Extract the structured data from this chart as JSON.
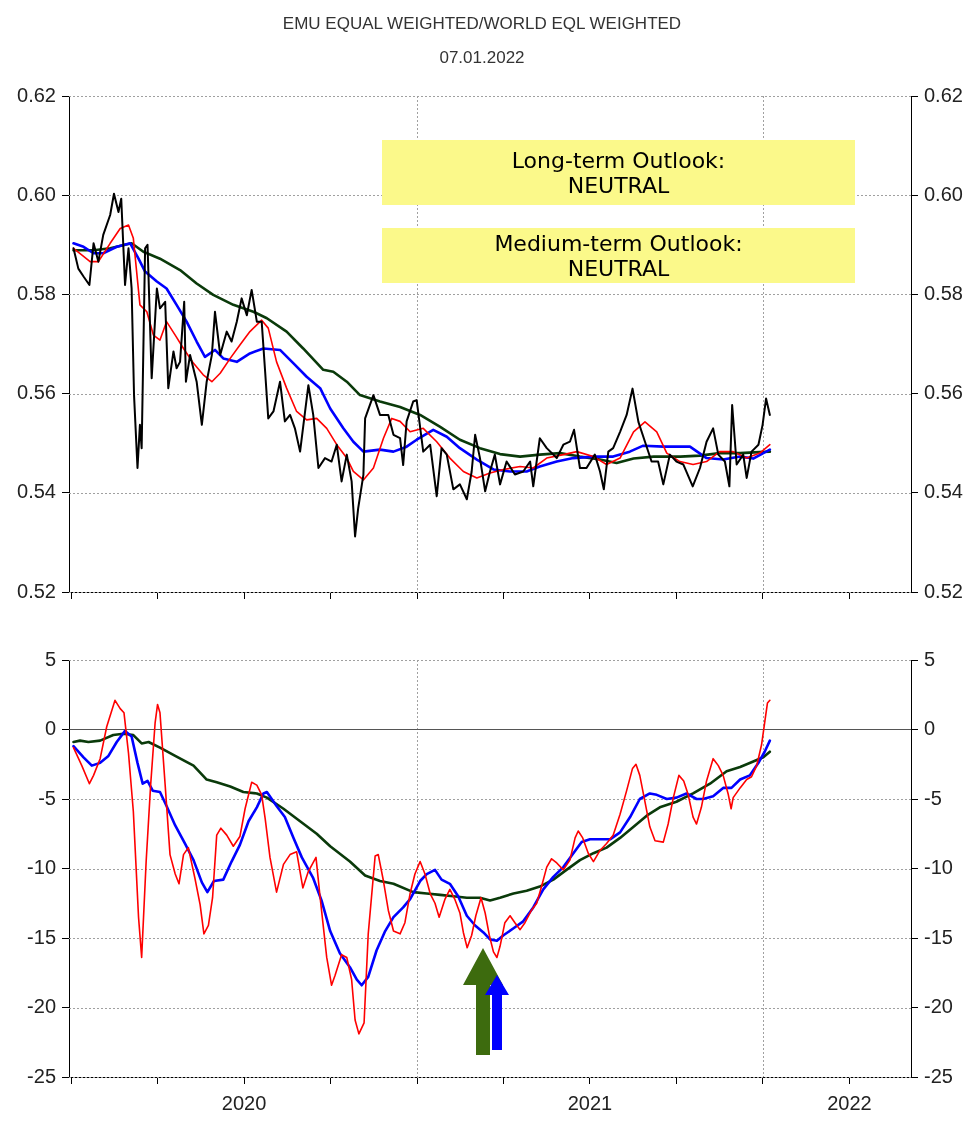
{
  "chart_data": [
    {
      "type": "line",
      "title": "EMU EQUAL WEIGHTED/WORLD EQL WEIGHTED",
      "subtitle": "07.01.2022",
      "annotations": [
        "Long-term Outlook:\nNEUTRAL",
        "Medium-term Outlook:\nNEUTRAL"
      ],
      "xlim": [
        2019.994,
        2022.428
      ],
      "xticks": [
        {
          "value": 2020,
          "label": null
        },
        {
          "value": 2020.25,
          "label": null
        },
        {
          "value": 2020.5,
          "label": null
        },
        {
          "value": 2020.75,
          "label": null
        },
        {
          "value": 2021,
          "label": null
        },
        {
          "value": 2021.25,
          "label": null
        },
        {
          "value": 2021.5,
          "label": null
        },
        {
          "value": 2021.75,
          "label": null
        },
        {
          "value": 2022,
          "label": null
        },
        {
          "value": 2022.25,
          "label": null
        }
      ],
      "ylim": [
        0.52,
        0.62
      ],
      "yticks": [
        0.52,
        0.54,
        0.56,
        0.58,
        {
          "value": 0.6,
          "label": "0.60"
        },
        0.62
      ],
      "y2lim": [
        0.52,
        0.62
      ],
      "y2ticks": [
        0.52,
        0.54,
        0.56,
        0.58,
        {
          "value": 0.6,
          "label": "0.60"
        },
        0.62
      ],
      "tick_labels": "y",
      "grid": "y",
      "ref_lines": [
        {
          "axis": "x",
          "value": 2021,
          "color": "#a0a0a0",
          "line_style": "dotted"
        },
        {
          "axis": "x",
          "value": 2022,
          "color": "#a0a0a0",
          "line_style": "dotted"
        }
      ],
      "series": [
        {
          "color": "#000000",
          "x": [
            2020.007,
            2020.021,
            2020.036,
            2020.053,
            2020.065,
            2020.079,
            2020.093,
            2020.113,
            2020.124,
            2020.137,
            2020.145,
            2020.156,
            2020.166,
            2020.175,
            2020.182,
            2020.192,
            2020.199,
            2020.204,
            2020.214,
            2020.221,
            2020.233,
            2020.248,
            2020.257,
            2020.272,
            2020.281,
            2020.296,
            2020.305,
            2020.315,
            2020.327,
            2020.332,
            2020.344,
            2020.363,
            2020.378,
            2020.392,
            2020.407,
            2020.416,
            2020.431,
            2020.45,
            2020.464,
            2020.479,
            2020.493,
            2020.508,
            2020.522,
            2020.537,
            2020.551,
            2020.561,
            2020.57,
            2020.585,
            2020.604,
            2020.618,
            2020.633,
            2020.647,
            2020.662,
            2020.686,
            2020.7,
            2020.715,
            2020.734,
            2020.753,
            2020.768,
            2020.782,
            2020.797,
            2020.811,
            2020.821,
            2020.83,
            2020.845,
            2020.85,
            2020.874,
            2020.893,
            2020.917,
            2020.932,
            2020.951,
            2020.96,
            2020.97,
            2020.989,
            2020.999,
            2021.018,
            2021.038,
            2021.057,
            2021.071,
            2021.086,
            2021.105,
            2021.124,
            2021.144,
            2021.158,
            2021.168,
            2021.182,
            2021.197,
            2021.211,
            2021.225,
            2021.24,
            2021.259,
            2021.283,
            2021.307,
            2021.327,
            2021.336,
            2021.355,
            2021.375,
            2021.404,
            2021.423,
            2021.442,
            2021.454,
            2021.471,
            2021.49,
            2021.514,
            2021.529,
            2021.54,
            2021.553,
            2021.567,
            2021.587,
            2021.606,
            2021.623,
            2021.64,
            2021.659,
            2021.678,
            2021.697,
            2021.712,
            2021.731,
            2021.75,
            2021.77,
            2021.797,
            2021.818,
            2021.837,
            2021.856,
            2021.871,
            2021.89,
            2021.903,
            2021.911,
            2021.924,
            2021.943,
            2021.953,
            2021.967,
            2021.987,
            2021.999,
            2022.009,
            2022.02
          ],
          "values": [
            0.5893,
            0.5852,
            0.5836,
            0.5819,
            0.5903,
            0.5866,
            0.592,
            0.596,
            0.6003,
            0.5966,
            0.5993,
            0.5819,
            0.5893,
            0.5812,
            0.5597,
            0.545,
            0.5537,
            0.549,
            0.5893,
            0.59,
            0.5631,
            0.5812,
            0.5772,
            0.5785,
            0.5611,
            0.5685,
            0.5651,
            0.5664,
            0.5785,
            0.5624,
            0.5678,
            0.5624,
            0.5537,
            0.5624,
            0.5678,
            0.5765,
            0.5678,
            0.5725,
            0.5705,
            0.5745,
            0.5792,
            0.5758,
            0.5809,
            0.5745,
            0.5745,
            0.5644,
            0.555,
            0.5564,
            0.5624,
            0.5544,
            0.5557,
            0.553,
            0.5483,
            0.5617,
            0.5557,
            0.545,
            0.547,
            0.5463,
            0.5497,
            0.5423,
            0.5477,
            0.5423,
            0.5312,
            0.5369,
            0.5436,
            0.555,
            0.5597,
            0.5557,
            0.5557,
            0.5517,
            0.551,
            0.5456,
            0.5544,
            0.5584,
            0.5587,
            0.5483,
            0.5497,
            0.5393,
            0.549,
            0.5477,
            0.5407,
            0.5417,
            0.5387,
            0.5443,
            0.5517,
            0.547,
            0.5403,
            0.5443,
            0.5477,
            0.5417,
            0.5463,
            0.5437,
            0.5443,
            0.5463,
            0.5413,
            0.551,
            0.549,
            0.547,
            0.5497,
            0.5503,
            0.5527,
            0.545,
            0.545,
            0.5477,
            0.5443,
            0.5407,
            0.5483,
            0.549,
            0.5523,
            0.5557,
            0.561,
            0.5543,
            0.5503,
            0.5463,
            0.5463,
            0.5417,
            0.5477,
            0.5463,
            0.5457,
            0.5413,
            0.545,
            0.5503,
            0.553,
            0.5477,
            0.5463,
            0.5413,
            0.5577,
            0.5457,
            0.5477,
            0.543,
            0.5483,
            0.5497,
            0.5537,
            0.559,
            0.5557
          ]
        },
        {
          "color": "#ff0000",
          "x": [
            2020.007,
            2020.055,
            2020.079,
            2020.113,
            2020.142,
            2020.166,
            2020.18,
            2020.199,
            2020.219,
            2020.238,
            2020.257,
            2020.276,
            2020.301,
            2020.325,
            2020.354,
            2020.382,
            2020.407,
            2020.431,
            2020.46,
            2020.488,
            2020.517,
            2020.551,
            2020.57,
            2020.594,
            2020.623,
            2020.652,
            2020.681,
            2020.71,
            2020.739,
            2020.768,
            2020.797,
            2020.816,
            2020.845,
            2020.874,
            2020.903,
            2020.927,
            2020.951,
            2020.98,
            2021.018,
            2021.057,
            2021.095,
            2021.134,
            2021.173,
            2021.211,
            2021.25,
            2021.298,
            2021.336,
            2021.375,
            2021.423,
            2021.462,
            2021.51,
            2021.548,
            2021.587,
            2021.626,
            2021.659,
            2021.693,
            2021.722,
            2021.76,
            2021.798,
            2021.837,
            2021.875,
            2021.914,
            2021.953,
            2021.991,
            2022.02
          ],
          "values": [
            0.5893,
            0.5866,
            0.5866,
            0.5903,
            0.5933,
            0.594,
            0.5913,
            0.5779,
            0.5765,
            0.5718,
            0.5708,
            0.5745,
            0.5718,
            0.5691,
            0.5661,
            0.5638,
            0.5624,
            0.5641,
            0.5671,
            0.5698,
            0.5725,
            0.5748,
            0.5732,
            0.5664,
            0.5611,
            0.5564,
            0.5547,
            0.555,
            0.553,
            0.5497,
            0.547,
            0.5443,
            0.5426,
            0.545,
            0.551,
            0.555,
            0.5544,
            0.5523,
            0.553,
            0.5503,
            0.547,
            0.5443,
            0.543,
            0.544,
            0.5447,
            0.5453,
            0.545,
            0.547,
            0.5477,
            0.5483,
            0.5473,
            0.5457,
            0.547,
            0.5523,
            0.5543,
            0.5523,
            0.548,
            0.5463,
            0.5457,
            0.5463,
            0.5483,
            0.5483,
            0.547,
            0.548,
            0.5497
          ]
        },
        {
          "color": "#0000ff",
          "x": [
            2020.007,
            2020.036,
            2020.065,
            2020.093,
            2020.132,
            2020.171,
            2020.195,
            2020.214,
            2020.248,
            2020.276,
            2020.305,
            2020.334,
            2020.363,
            2020.387,
            2020.416,
            2020.44,
            2020.479,
            2020.517,
            2020.556,
            2020.604,
            2020.643,
            2020.681,
            2020.72,
            2020.749,
            2020.787,
            2020.816,
            2020.845,
            2020.893,
            2020.932,
            2020.97,
            2020.999,
            2021.047,
            2021.086,
            2021.124,
            2021.173,
            2021.221,
            2021.269,
            2021.317,
            2021.355,
            2021.404,
            2021.452,
            2021.51,
            2021.567,
            2021.615,
            2021.654,
            2021.712,
            2021.789,
            2021.837,
            2021.885,
            2021.934,
            2021.972,
            2022.02
          ],
          "values": [
            0.5903,
            0.5896,
            0.5883,
            0.5883,
            0.5896,
            0.5903,
            0.5872,
            0.5846,
            0.5826,
            0.5812,
            0.5779,
            0.5745,
            0.5705,
            0.5674,
            0.5688,
            0.5671,
            0.5664,
            0.5681,
            0.5691,
            0.5688,
            0.5661,
            0.5634,
            0.5611,
            0.557,
            0.553,
            0.5503,
            0.5483,
            0.5487,
            0.5483,
            0.5493,
            0.5507,
            0.5527,
            0.5513,
            0.549,
            0.5467,
            0.5447,
            0.5443,
            0.5443,
            0.5453,
            0.5463,
            0.547,
            0.5473,
            0.5473,
            0.5483,
            0.5495,
            0.5493,
            0.5493,
            0.547,
            0.5467,
            0.5473,
            0.5469,
            0.5487
          ]
        },
        {
          "color": "#0a3a0a",
          "x": [
            2020.007,
            2020.065,
            2020.113,
            2020.175,
            2020.209,
            2020.257,
            2020.315,
            2020.363,
            2020.411,
            2020.469,
            2020.527,
            2020.566,
            2020.623,
            2020.671,
            2020.729,
            2020.758,
            2020.797,
            2020.835,
            2020.893,
            2020.951,
            2021.009,
            2021.067,
            2021.124,
            2021.182,
            2021.24,
            2021.298,
            2021.355,
            2021.413,
            2021.471,
            2021.529,
            2021.577,
            2021.626,
            2021.684,
            2021.761,
            2021.818,
            2021.875,
            2021.934,
            2022.02
          ],
          "values": [
            0.5889,
            0.5889,
            0.5893,
            0.5903,
            0.5886,
            0.5872,
            0.5849,
            0.5822,
            0.5799,
            0.5779,
            0.5765,
            0.5752,
            0.5725,
            0.5691,
            0.5648,
            0.5644,
            0.5624,
            0.5597,
            0.5584,
            0.5573,
            0.5557,
            0.5533,
            0.5507,
            0.549,
            0.5478,
            0.5473,
            0.5477,
            0.548,
            0.5473,
            0.5467,
            0.546,
            0.5469,
            0.5473,
            0.5473,
            0.5475,
            0.548,
            0.548,
            0.5483
          ]
        }
      ]
    },
    {
      "type": "line",
      "xlim": [
        2019.994,
        2022.428
      ],
      "xticks": [
        {
          "value": 2020,
          "label": null
        },
        {
          "value": 2020.25,
          "label": null
        },
        {
          "value": 2020.5,
          "label": "2020"
        },
        {
          "value": 2020.75,
          "label": null
        },
        {
          "value": 2021,
          "label": null
        },
        {
          "value": 2021.25,
          "label": null
        },
        {
          "value": 2021.5,
          "label": "2021"
        },
        {
          "value": 2021.75,
          "label": null
        },
        {
          "value": 2022,
          "label": null
        },
        {
          "value": 2022.25,
          "label": "2022"
        }
      ],
      "ylim": [
        -25,
        5
      ],
      "yticks": [
        -25,
        -20,
        -15,
        -10,
        -5,
        0,
        5
      ],
      "y2lim": [
        -25,
        5
      ],
      "y2ticks": [
        -25,
        -20,
        -15,
        -10,
        -5,
        0,
        5
      ],
      "grid": "y",
      "ref_lines": [
        {
          "axis": "x",
          "value": 2021,
          "color": "#a0a0a0",
          "line_style": "dotted"
        },
        {
          "axis": "x",
          "value": 2022,
          "color": "#a0a0a0",
          "line_style": "dotted"
        },
        {
          "axis": "y",
          "value": 0,
          "color": "#555555"
        }
      ],
      "series": [
        {
          "color": "#ff0000",
          "x": [
            2020.007,
            2020.031,
            2020.053,
            2020.065,
            2020.084,
            2020.103,
            2020.127,
            2020.142,
            2020.153,
            2020.166,
            2020.18,
            2020.195,
            2020.204,
            2020.217,
            2020.23,
            2020.243,
            2020.25,
            2020.257,
            2020.272,
            2020.286,
            2020.301,
            2020.312,
            2020.325,
            2020.339,
            2020.358,
            2020.373,
            2020.384,
            2020.397,
            2020.409,
            2020.421,
            2020.433,
            2020.45,
            2020.469,
            2020.488,
            2020.503,
            2020.522,
            2020.537,
            2020.551,
            2020.561,
            2020.575,
            2020.594,
            2020.614,
            2020.633,
            2020.652,
            2020.67,
            2020.686,
            2020.708,
            2020.72,
            2020.739,
            2020.753,
            2020.763,
            2020.782,
            2020.797,
            2020.811,
            2020.821,
            2020.832,
            2020.847,
            2020.859,
            2020.879,
            2020.888,
            2020.903,
            2020.917,
            2020.932,
            2020.951,
            2020.965,
            2020.98,
            2020.994,
            2021.009,
            2021.023,
            2021.038,
            2021.052,
            2021.064,
            2021.081,
            2021.095,
            2021.109,
            2021.124,
            2021.134,
            2021.145,
            2021.158,
            2021.17,
            2021.185,
            2021.197,
            2021.209,
            2021.221,
            2021.231,
            2021.24,
            2021.254,
            2021.269,
            2021.283,
            2021.298,
            2021.312,
            2021.331,
            2021.346,
            2021.36,
            2021.375,
            2021.389,
            2021.404,
            2021.423,
            2021.442,
            2021.457,
            2021.466,
            2021.479,
            2021.495,
            2021.51,
            2021.529,
            2021.548,
            2021.567,
            2021.587,
            2021.606,
            2021.623,
            2021.633,
            2021.644,
            2021.659,
            2021.673,
            2021.688,
            2021.712,
            2021.726,
            2021.741,
            2021.757,
            2021.771,
            2021.784,
            2021.798,
            2021.808,
            2021.822,
            2021.837,
            2021.856,
            2021.871,
            2021.885,
            2021.9,
            2021.908,
            2021.914,
            2021.934,
            2021.953,
            2021.967,
            2021.982,
            2021.996,
            2022.005,
            2022.013,
            2022.02
          ],
          "values": [
            -1.3,
            -2.6,
            -3.9,
            -3.3,
            -2.1,
            0.2,
            2.1,
            1.5,
            1.2,
            -1.7,
            -5.9,
            -13.5,
            -16.4,
            -9.5,
            -4.0,
            0.5,
            1.8,
            1.2,
            -4.0,
            -9.0,
            -10.4,
            -11.1,
            -9.0,
            -8.5,
            -10.7,
            -12.6,
            -14.7,
            -14.1,
            -12.1,
            -7.6,
            -7.1,
            -7.6,
            -8.4,
            -7.7,
            -5.7,
            -3.8,
            -4.0,
            -4.7,
            -6.4,
            -9.2,
            -11.7,
            -9.7,
            -9.0,
            -8.8,
            -11.4,
            -10.2,
            -9.2,
            -12.1,
            -16.4,
            -18.4,
            -17.7,
            -16.2,
            -16.4,
            -18.0,
            -20.9,
            -21.9,
            -21.1,
            -14.7,
            -9.1,
            -9.0,
            -10.9,
            -13.0,
            -14.5,
            -14.7,
            -13.9,
            -11.8,
            -10.4,
            -9.5,
            -10.4,
            -11.8,
            -12.5,
            -13.5,
            -12.2,
            -11.5,
            -12.2,
            -13.2,
            -14.6,
            -15.7,
            -14.8,
            -13.4,
            -12.1,
            -13.2,
            -14.8,
            -16.0,
            -16.4,
            -15.6,
            -13.9,
            -13.4,
            -13.9,
            -14.4,
            -13.9,
            -13.0,
            -12.5,
            -11.3,
            -9.9,
            -9.3,
            -9.6,
            -10.1,
            -9.4,
            -7.8,
            -7.3,
            -7.8,
            -8.9,
            -9.5,
            -8.7,
            -8.2,
            -7.6,
            -6.1,
            -4.4,
            -2.8,
            -2.5,
            -3.3,
            -5.2,
            -7.0,
            -8.0,
            -8.1,
            -6.8,
            -4.9,
            -3.3,
            -3.7,
            -4.7,
            -6.3,
            -6.8,
            -5.6,
            -3.7,
            -2.1,
            -2.6,
            -3.3,
            -4.7,
            -5.7,
            -4.9,
            -4.2,
            -3.6,
            -3.4,
            -2.6,
            -1.1,
            0.5,
            1.9,
            2.1
          ]
        },
        {
          "color": "#0000ff",
          "x": [
            2020.007,
            2020.036,
            2020.06,
            2020.084,
            2020.108,
            2020.132,
            2020.156,
            2020.175,
            2020.192,
            2020.207,
            2020.221,
            2020.236,
            2020.257,
            2020.276,
            2020.301,
            2020.329,
            2020.354,
            2020.378,
            2020.394,
            2020.413,
            2020.44,
            2020.464,
            2020.488,
            2020.513,
            2020.537,
            2020.556,
            2020.566,
            2020.594,
            2020.618,
            2020.643,
            2020.667,
            2020.7,
            2020.724,
            2020.749,
            2020.777,
            2020.806,
            2020.826,
            2020.84,
            2020.859,
            2020.883,
            2020.908,
            2020.932,
            2020.96,
            2020.98,
            2021.009,
            2021.028,
            2021.052,
            2021.071,
            2021.095,
            2021.119,
            2021.144,
            2021.168,
            2021.192,
            2021.211,
            2021.231,
            2021.25,
            2021.279,
            2021.307,
            2021.336,
            2021.365,
            2021.394,
            2021.423,
            2021.452,
            2021.476,
            2021.5,
            2021.529,
            2021.558,
            2021.587,
            2021.616,
            2021.644,
            2021.673,
            2021.693,
            2021.722,
            2021.75,
            2021.779,
            2021.808,
            2021.827,
            2021.856,
            2021.885,
            2021.909,
            2021.934,
            2021.962,
            2021.987,
            2022.005,
            2022.02
          ],
          "values": [
            -1.2,
            -2.0,
            -2.6,
            -2.4,
            -1.9,
            -0.9,
            -0.1,
            -0.5,
            -2.4,
            -3.9,
            -3.7,
            -4.4,
            -4.5,
            -5.5,
            -6.9,
            -8.2,
            -9.4,
            -11.0,
            -11.7,
            -10.9,
            -10.8,
            -9.5,
            -8.3,
            -6.6,
            -5.6,
            -4.6,
            -4.5,
            -5.5,
            -6.3,
            -7.8,
            -9.2,
            -10.7,
            -12.3,
            -14.5,
            -16.1,
            -17.1,
            -18.0,
            -18.4,
            -17.8,
            -15.9,
            -14.5,
            -13.5,
            -12.8,
            -12.2,
            -10.9,
            -10.4,
            -10.1,
            -10.8,
            -11.1,
            -12.0,
            -13.4,
            -14.1,
            -14.6,
            -15.1,
            -15.2,
            -14.8,
            -14.3,
            -13.8,
            -12.8,
            -11.5,
            -10.6,
            -9.9,
            -8.9,
            -8.1,
            -7.9,
            -7.9,
            -7.9,
            -7.4,
            -6.3,
            -5.0,
            -4.6,
            -4.7,
            -5.0,
            -4.9,
            -4.6,
            -5.0,
            -5.0,
            -4.8,
            -4.2,
            -4.2,
            -3.6,
            -3.3,
            -2.4,
            -1.6,
            -0.8
          ]
        },
        {
          "color": "#0a3a0a",
          "x": [
            2020.007,
            2020.026,
            2020.05,
            2020.084,
            2020.122,
            2020.151,
            2020.18,
            2020.204,
            2020.224,
            2020.257,
            2020.301,
            2020.354,
            2020.392,
            2020.421,
            2020.46,
            2020.498,
            2020.537,
            2020.566,
            2020.614,
            2020.662,
            2020.71,
            2020.749,
            2020.806,
            2020.85,
            2020.893,
            2020.932,
            2020.989,
            2021.028,
            2021.067,
            2021.105,
            2021.144,
            2021.182,
            2021.211,
            2021.24,
            2021.279,
            2021.317,
            2021.355,
            2021.394,
            2021.432,
            2021.471,
            2021.51,
            2021.548,
            2021.587,
            2021.626,
            2021.664,
            2021.702,
            2021.75,
            2021.798,
            2021.847,
            2021.895,
            2021.934,
            2021.972,
            2022.001,
            2022.02
          ],
          "values": [
            -0.9,
            -0.8,
            -0.9,
            -0.8,
            -0.4,
            -0.3,
            -0.4,
            -1.0,
            -0.9,
            -1.3,
            -1.9,
            -2.6,
            -3.6,
            -3.8,
            -4.1,
            -4.5,
            -4.6,
            -4.9,
            -5.7,
            -6.6,
            -7.5,
            -8.4,
            -9.5,
            -10.5,
            -10.9,
            -11.1,
            -11.7,
            -11.8,
            -11.9,
            -12.0,
            -12.1,
            -12.1,
            -12.3,
            -12.1,
            -11.8,
            -11.6,
            -11.3,
            -10.8,
            -10.1,
            -9.4,
            -8.9,
            -8.5,
            -7.8,
            -7.0,
            -6.2,
            -5.6,
            -5.2,
            -4.6,
            -3.9,
            -3.0,
            -2.7,
            -2.3,
            -2.0,
            -1.6
          ]
        }
      ]
    }
  ]
}
